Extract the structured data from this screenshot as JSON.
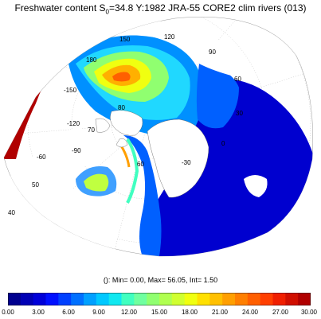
{
  "title": {
    "prefix": "Freshwater content S",
    "sub": "0",
    "suffix": "=34.8 Y:1982 JRA-55 CORE2 clim rivers (013)"
  },
  "stats": "(): Min= 0.00, Max= 56.05, Int= 1.50",
  "map": {
    "projection": "polar-stereographic",
    "land_color": "#ffffff",
    "land_edge_color": "#b00000",
    "longitude_labels": [
      "150",
      "120",
      "90",
      "180",
      "60",
      "-150",
      "30",
      "-120",
      "0",
      "-90",
      "-30",
      "-60"
    ],
    "latitude_labels": [
      "80",
      "70",
      "60",
      "50",
      "40"
    ]
  },
  "colorbar": {
    "range": [
      0,
      30
    ],
    "interval": 1.5,
    "tick_labels": [
      "0.00",
      "3.00",
      "6.00",
      "9.00",
      "12.00",
      "15.00",
      "18.00",
      "21.00",
      "24.00",
      "27.00",
      "30.00"
    ],
    "colors": [
      "#00008f",
      "#0000b5",
      "#0000d9",
      "#0010ff",
      "#0040ff",
      "#0070ff",
      "#00a0ff",
      "#00c8ff",
      "#10e8f0",
      "#40ffc0",
      "#70ffa0",
      "#90ff70",
      "#b0ff50",
      "#d0ff30",
      "#f0ff10",
      "#ffe000",
      "#ffc000",
      "#ff9f00",
      "#ff7f00",
      "#ff5f00",
      "#ff3f00",
      "#f01f00",
      "#d00f00",
      "#b00000"
    ]
  }
}
